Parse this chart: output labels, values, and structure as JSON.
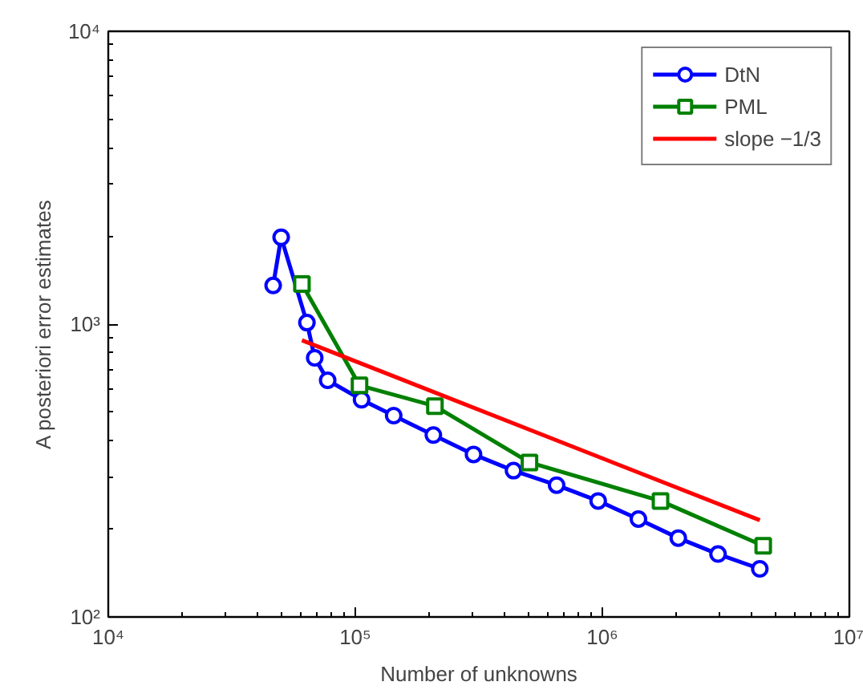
{
  "chart_data": {
    "type": "line",
    "xlabel": "Number of unknowns",
    "ylabel": "A posteriori error estimates",
    "log": "xy",
    "grid": false,
    "legend": "top right",
    "xlim": [
      10000,
      10000000
    ],
    "ylim": [
      100,
      10000
    ],
    "xticks": [
      {
        "value": 10000,
        "label": "10⁴"
      },
      {
        "value": 100000,
        "label": "10⁵"
      },
      {
        "value": 1000000,
        "label": "10⁶"
      },
      {
        "value": 10000000,
        "label": "10⁷"
      }
    ],
    "yticks": [
      {
        "value": 100,
        "label": "10²"
      },
      {
        "value": 1000,
        "label": "10³"
      },
      {
        "value": 10000,
        "label": "10⁴"
      }
    ],
    "series": [
      {
        "name": "DtN",
        "color": "#0000ff",
        "marker": "circle",
        "x": [
          46500,
          50100,
          63700,
          68500,
          77300,
          106000,
          143000,
          207000,
          301000,
          437000,
          653000,
          962000,
          1400000,
          2030000,
          2940000,
          4340000
        ],
        "values": [
          1355,
          1980,
          1012,
          767,
          643,
          552,
          487,
          418,
          359,
          316,
          282,
          249,
          216,
          186,
          164,
          146
        ]
      },
      {
        "name": "PML",
        "color": "#008000",
        "marker": "square",
        "x": [
          60800,
          104000,
          210000,
          507000,
          1720000,
          4480000
        ],
        "values": [
          1370,
          618,
          525,
          337,
          249,
          175
        ]
      },
      {
        "name": "slope −1/3",
        "color": "#ff0000",
        "marker": "none",
        "x": [
          60800,
          4340000
        ],
        "values": [
          881,
          214
        ]
      }
    ]
  }
}
